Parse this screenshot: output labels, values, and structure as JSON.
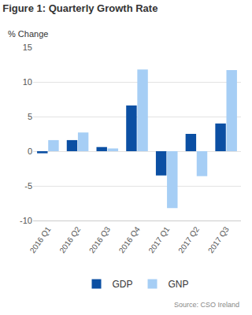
{
  "chart_data": {
    "type": "bar",
    "title": "Figure 1: Quarterly Growth Rate",
    "y_label": "% Change",
    "categories": [
      "2016 Q1",
      "2016 Q2",
      "2016 Q3",
      "2016 Q4",
      "2017 Q1",
      "2017 Q2",
      "2017 Q3"
    ],
    "series": [
      {
        "name": "GDP",
        "color": "#0b4fa3",
        "values": [
          -0.3,
          1.6,
          0.6,
          6.6,
          -3.5,
          2.5,
          4.0
        ]
      },
      {
        "name": "GNP",
        "color": "#a6cef5",
        "values": [
          1.6,
          2.7,
          0.4,
          11.8,
          -8.2,
          -3.6,
          11.7
        ]
      }
    ],
    "ylim": [
      -10,
      15
    ],
    "yticks": [
      -10,
      -5,
      0,
      5,
      10,
      15
    ],
    "grid": true,
    "legend": "bottom",
    "source": "Source: CSO Ireland"
  }
}
